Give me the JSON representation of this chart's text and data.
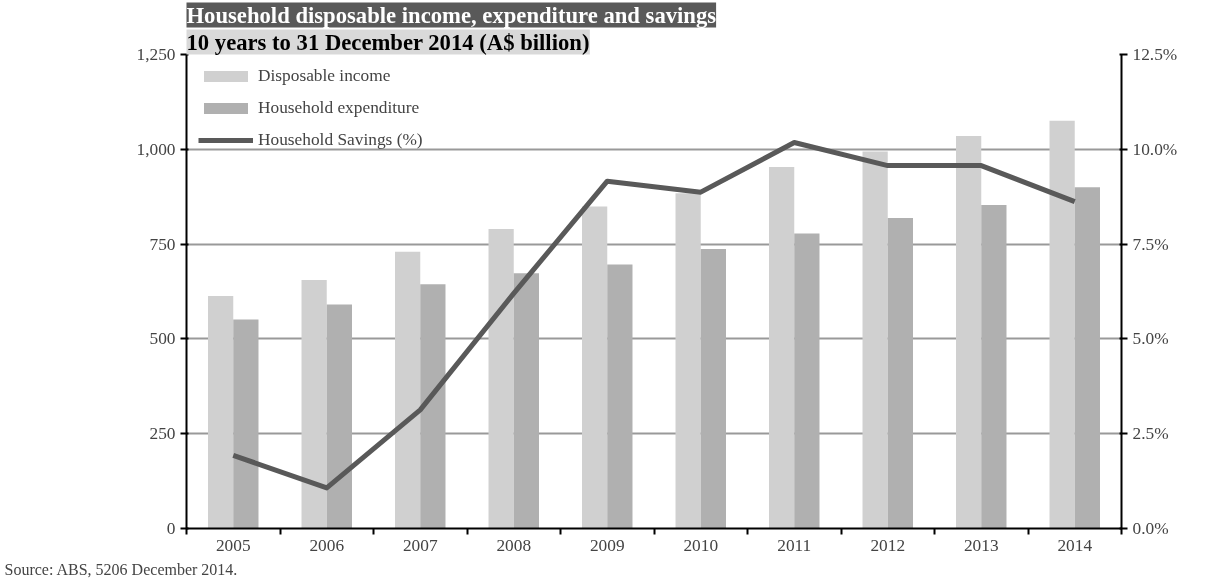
{
  "chart_data": {
    "type": "bar",
    "title": "Household disposable income, expenditure and savings",
    "subtitle": "10 years to 31 December 2014 (A$ billion)",
    "categories": [
      "2005",
      "2006",
      "2007",
      "2008",
      "2009",
      "2010",
      "2011",
      "2012",
      "2013",
      "2014"
    ],
    "series": [
      {
        "name": "Disposable income",
        "color": "#d0d0d0",
        "values": [
          613,
          655,
          730,
          790,
          849,
          884,
          953,
          994,
          1035,
          1075
        ]
      },
      {
        "name": "Household expenditure",
        "color": "#b0b0b0",
        "values": [
          551,
          591,
          644,
          673,
          696,
          737,
          778,
          819,
          853,
          900
        ]
      },
      {
        "name": "Household Savings (%)",
        "type": "line",
        "axis": "y2",
        "color": "#595959",
        "values": [
          1.93,
          1.07,
          3.13,
          6.2,
          9.16,
          8.87,
          10.18,
          9.57,
          9.57,
          8.62
        ]
      }
    ],
    "ylim": [
      0,
      1250
    ],
    "yticks": [
      0,
      250,
      500,
      750,
      {
        "value": 1000,
        "label": "1,000"
      },
      {
        "value": 1250,
        "label": "1,250"
      }
    ],
    "y2lim": [
      0,
      12.5
    ],
    "y2ticks": [
      {
        "value": 0,
        "label": "0.0%"
      },
      {
        "value": 2.5,
        "label": "2.5%"
      },
      {
        "value": 5,
        "label": "5.0%"
      },
      {
        "value": 7.5,
        "label": "7.5%"
      },
      {
        "value": 10,
        "label": "10.0%"
      },
      {
        "value": 12.5,
        "label": "12.5%"
      }
    ],
    "grid": "y",
    "legend": "top left",
    "line_style": "solid",
    "annotations": [
      "Source: ABS, 5206 December 2014."
    ]
  }
}
